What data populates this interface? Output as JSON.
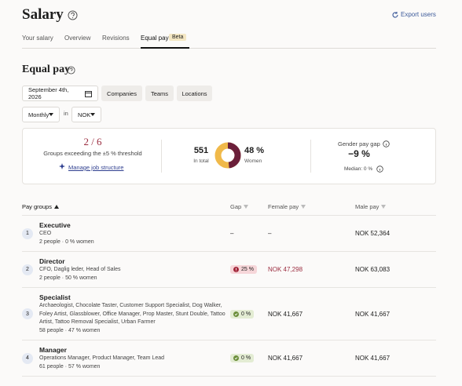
{
  "header": {
    "title": "Salary",
    "action": "Export users"
  },
  "tabs": [
    "Your salary",
    "Overview",
    "Revisions",
    "Equal pay"
  ],
  "active_tab": 3,
  "tab_badge": "Beta",
  "section_title": "Equal pay",
  "filters": {
    "date": "September 4th, 2026",
    "buttons": [
      "Companies",
      "Teams",
      "Locations"
    ],
    "period": "Monthly",
    "in": "in",
    "currency": "NOK"
  },
  "summary": {
    "groups": "2 / 6",
    "groups_caption": "Groups exceeding the ±5 % threshold",
    "link": "Manage job structure",
    "total": 551,
    "total_caption": "In total",
    "women": {
      "value": 48,
      "label": "48 %"
    },
    "women_caption": "Women",
    "gap_title": "Gender pay gap",
    "gap": "−9 %",
    "median": "Median: 0 %"
  },
  "table": {
    "columns": [
      "Pay groups",
      "Gap",
      "Female pay",
      "Male pay"
    ],
    "rows": [
      {
        "number": 1,
        "title": "Executive",
        "roles": "CEO",
        "meta": "2 people · 0 % women",
        "gap": "–",
        "female": "–",
        "male": "NOK 52,364"
      },
      {
        "number": 2,
        "title": "Director",
        "roles": "CFO, Daglig leder, Head of Sales",
        "meta": "2 people · 50 % women",
        "gap": "25 %",
        "gap_status": "alert",
        "female": "NOK 47,298",
        "male": "NOK 63,083"
      },
      {
        "number": 3,
        "title": "Specialist",
        "roles": "Archaeologist, Chocolate Taster, Customer Support Specialist, Dog Walker, Foley Artist, Glassblower, Office Manager, Prop Master, Stunt Double, Tattoo Artist, Tattoo Removal Specialist, Urban Farmer",
        "meta": "58 people · 47 % women",
        "gap": "0 %",
        "gap_status": "ok",
        "female": "NOK 41,667",
        "male": "NOK 41,667"
      },
      {
        "number": 4,
        "title": "Manager",
        "roles": "Operations Manager, Product Manager, Team Lead",
        "meta": "61 people · 57 % women",
        "gap": "0 %",
        "gap_status": "ok",
        "female": "NOK 41,667",
        "male": "NOK 41,667"
      }
    ]
  }
}
